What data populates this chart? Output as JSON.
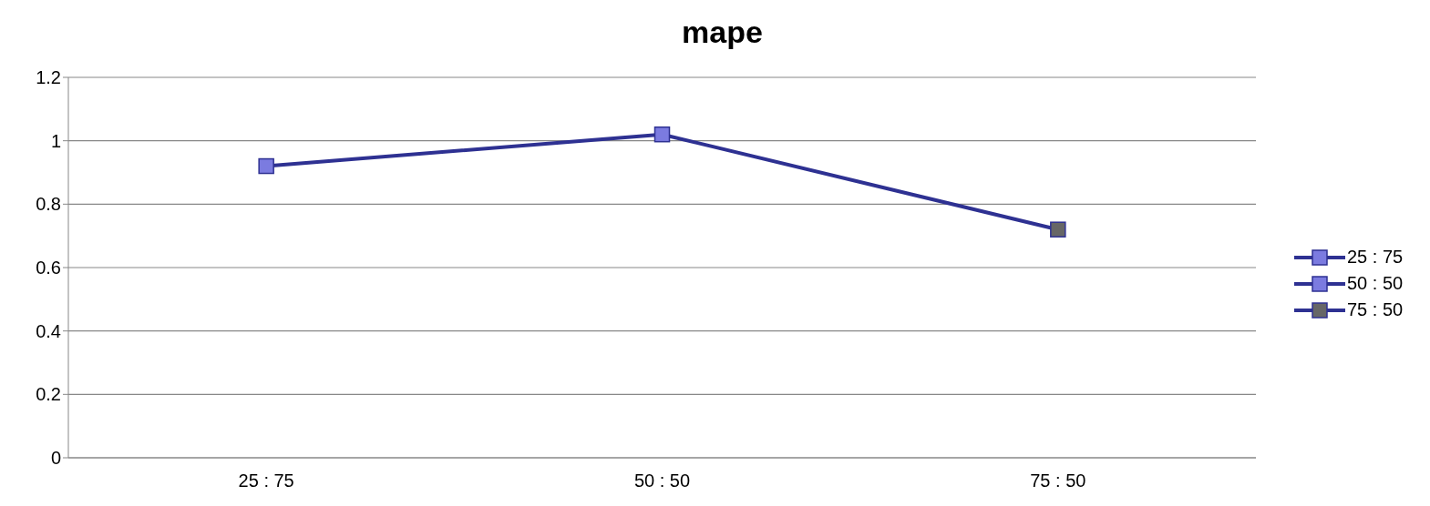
{
  "chart_data": {
    "type": "line",
    "title": "mape",
    "categories": [
      "25 : 75",
      "50 : 50",
      "75 : 50"
    ],
    "series": [
      {
        "color": "#2e3192",
        "colors": [
          "#7b7be0",
          "#7b7be0",
          "#666666"
        ],
        "values": [
          0.92,
          1.02,
          0.72
        ]
      }
    ],
    "ylim": [
      0,
      1.2
    ],
    "yticks": [
      0,
      0.2,
      0.4,
      0.6,
      0.8,
      1,
      1.2
    ],
    "grid": "y",
    "marker": "square"
  }
}
